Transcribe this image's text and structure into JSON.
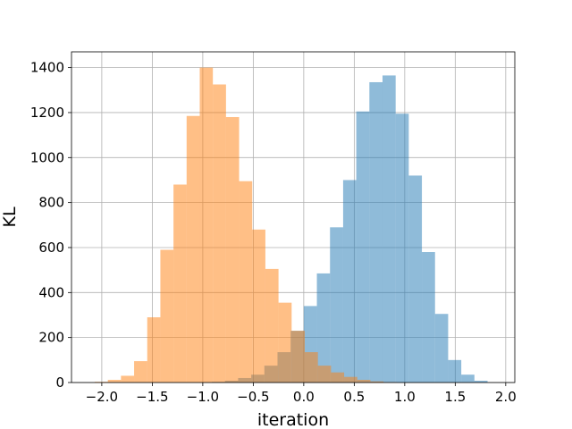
{
  "chart_data": {
    "type": "histogram",
    "title": "",
    "xlabel": "iteration",
    "ylabel": "KL",
    "xlim": [
      -2.3,
      2.09
    ],
    "ylim": [
      0,
      1470
    ],
    "x_ticks": [
      -2.0,
      -1.5,
      -1.0,
      -0.5,
      0.0,
      0.5,
      1.0,
      1.5,
      2.0
    ],
    "x_tick_labels": [
      "−2.0",
      "−1.5",
      "−1.0",
      "−0.5",
      "0.0",
      "0.5",
      "1.0",
      "1.5",
      "2.0"
    ],
    "y_ticks": [
      0,
      200,
      400,
      600,
      800,
      1000,
      1200,
      1400
    ],
    "y_tick_labels": [
      "0",
      "200",
      "400",
      "600",
      "800",
      "1000",
      "1200",
      "1400"
    ],
    "grid": true,
    "legend": "none",
    "series": [
      {
        "color": "#1f77b4",
        "alpha": 0.5,
        "bin_edges": [
          -0.91,
          -0.78,
          -0.65,
          -0.52,
          -0.39,
          -0.26,
          -0.13,
          0.0,
          0.13,
          0.26,
          0.39,
          0.52,
          0.65,
          0.78,
          0.91,
          1.04,
          1.17,
          1.3,
          1.43,
          1.56,
          1.69,
          1.82
        ],
        "counts": [
          3,
          8,
          20,
          35,
          75,
          135,
          230,
          340,
          485,
          690,
          900,
          1205,
          1335,
          1365,
          1195,
          920,
          580,
          305,
          100,
          35,
          8
        ]
      },
      {
        "color": "#ff7f0e",
        "alpha": 0.5,
        "bin_edges": [
          -2.07,
          -1.94,
          -1.81,
          -1.68,
          -1.55,
          -1.42,
          -1.29,
          -1.16,
          -1.03,
          -0.9,
          -0.77,
          -0.64,
          -0.51,
          -0.38,
          -0.25,
          -0.12,
          0.01,
          0.14,
          0.27,
          0.4,
          0.53,
          0.66,
          0.79,
          0.92
        ],
        "counts": [
          3,
          12,
          30,
          95,
          290,
          590,
          880,
          1185,
          1400,
          1325,
          1180,
          895,
          680,
          505,
          355,
          230,
          135,
          75,
          45,
          25,
          12,
          5,
          2
        ]
      }
    ]
  }
}
